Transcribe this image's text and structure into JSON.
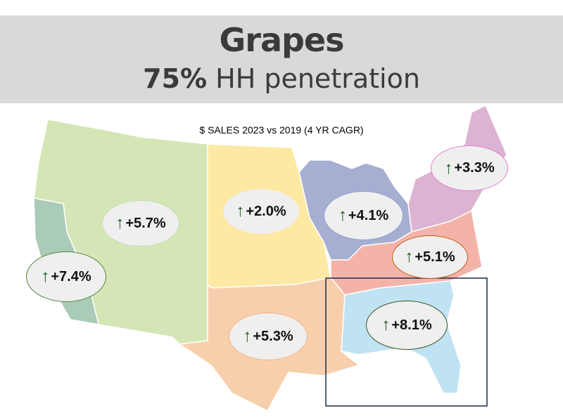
{
  "header": {
    "title": "Grapes",
    "penetration_value": "75%",
    "penetration_label": "HH penetration"
  },
  "map": {
    "subtitle": "$ SALES 2023 vs 2019 (4 YR CAGR)",
    "arrow_glyph": "↑",
    "regions": [
      {
        "id": "california",
        "value": "+7.4%",
        "fill": "#a9cbb8",
        "border": "#538135"
      },
      {
        "id": "west",
        "value": "+5.7%",
        "fill": "#d4e6b5",
        "border": "#c5e0b4"
      },
      {
        "id": "plains",
        "value": "+2.0%",
        "fill": "#fde9a3",
        "border": "#ffe699"
      },
      {
        "id": "great-lakes",
        "value": "+4.1%",
        "fill": "#a6aed1",
        "border": "#8ea0cc"
      },
      {
        "id": "northeast",
        "value": "+3.3%",
        "fill": "#dcb3d2",
        "border": "#e27fd3"
      },
      {
        "id": "mid-south",
        "value": "+5.1%",
        "fill": "#f4b3a8",
        "border": "#c55a11"
      },
      {
        "id": "south-central",
        "value": "+5.3%",
        "fill": "#f8cfac",
        "border": "#f4b183"
      },
      {
        "id": "southeast",
        "value": "+8.1%",
        "fill": "#bfe3f2",
        "border": "#385723"
      }
    ],
    "highlight_box_color": "#1f2a4d"
  }
}
